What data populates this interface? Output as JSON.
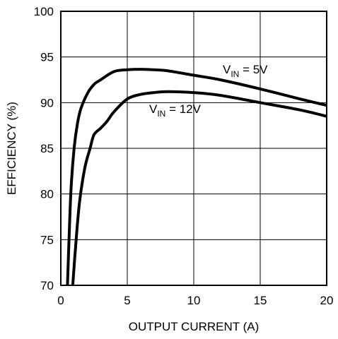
{
  "chart_data": {
    "type": "line",
    "xlabel": "OUTPUT CURRENT (A)",
    "ylabel": "EFFICIENCY (%)",
    "xlim": [
      0,
      20
    ],
    "ylim": [
      70,
      100
    ],
    "x_ticks": [
      "0",
      "5",
      "10",
      "15",
      "20"
    ],
    "y_ticks": [
      "70",
      "75",
      "80",
      "85",
      "90",
      "95",
      "100"
    ],
    "grid": true,
    "series": [
      {
        "name_parts": [
          "V",
          "IN",
          " = 5V"
        ],
        "x": [
          0.5,
          0.75,
          1.0,
          1.25,
          1.5,
          2.0,
          2.5,
          3.0,
          4.0,
          5.0,
          6.0,
          7.0,
          8.0,
          10.0,
          12.0,
          15.0,
          18.0,
          20.0
        ],
        "values": [
          70.0,
          80.0,
          85.0,
          87.7,
          89.3,
          91.0,
          92.0,
          92.5,
          93.4,
          93.6,
          93.65,
          93.6,
          93.5,
          93.0,
          92.5,
          91.5,
          90.4,
          89.7
        ]
      },
      {
        "name_parts": [
          "V",
          "IN",
          " = 12V"
        ],
        "x": [
          0.9,
          1.1,
          1.4,
          1.8,
          2.2,
          2.5,
          3.0,
          3.5,
          4.0,
          5.0,
          6.0,
          7.0,
          8.0,
          10.0,
          12.0,
          15.0,
          18.0,
          20.0
        ],
        "values": [
          70.0,
          74.0,
          79.0,
          82.8,
          85.0,
          86.5,
          87.2,
          88.0,
          89.0,
          90.4,
          90.9,
          91.1,
          91.2,
          91.1,
          90.8,
          90.0,
          89.2,
          88.5
        ]
      }
    ]
  }
}
